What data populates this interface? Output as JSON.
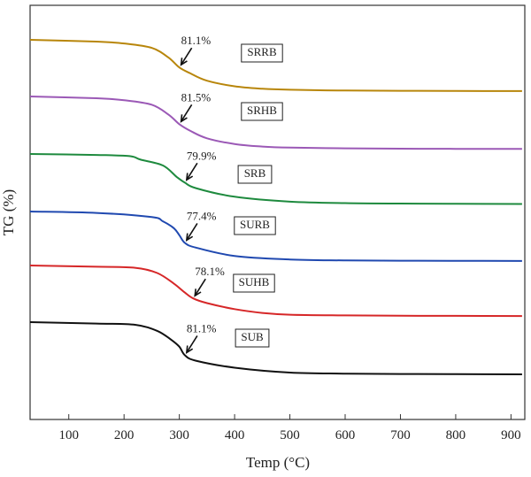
{
  "chart_data": {
    "type": "line",
    "title": "",
    "xlabel": "Temp (°C)",
    "ylabel": "TG (%)",
    "xlim": [
      30,
      925
    ],
    "xticks": [
      100,
      200,
      300,
      400,
      500,
      600,
      700,
      800,
      900
    ],
    "y_ticks_shown": false,
    "grid": false,
    "legend": "none (inline boxed labels)",
    "series": [
      {
        "name": "SRRB",
        "color": "#b8860b",
        "annotation": "81.1%",
        "x": [
          30,
          150,
          200,
          250,
          280,
          300,
          320,
          350,
          400,
          450,
          500,
          600,
          700,
          800,
          920
        ],
        "y": [
          100,
          98.8,
          97.5,
          94.5,
          88,
          81.1,
          77,
          72,
          68.2,
          66.5,
          65.8,
          65.3,
          65.1,
          65.0,
          64.9
        ]
      },
      {
        "name": "SRHB",
        "color": "#9b59b6",
        "annotation": "81.5%",
        "x": [
          30,
          150,
          200,
          250,
          280,
          300,
          320,
          350,
          400,
          450,
          500,
          600,
          700,
          800,
          920
        ],
        "y": [
          100,
          98.8,
          97.5,
          94.5,
          88,
          81.5,
          77,
          72,
          68.2,
          66.5,
          65.8,
          65.3,
          65.1,
          65.0,
          64.9
        ]
      },
      {
        "name": "SRB",
        "color": "#1e8a3e",
        "annotation": "79.9%",
        "x": [
          30,
          150,
          210,
          230,
          270,
          295,
          310,
          330,
          400,
          500,
          600,
          700,
          800,
          920
        ],
        "y": [
          100,
          99.3,
          98.5,
          96,
          92,
          84,
          79.9,
          76,
          70,
          66.5,
          65.5,
          65.2,
          65.0,
          64.9
        ]
      },
      {
        "name": "SURB",
        "color": "#2049b0",
        "annotation": "77.4%",
        "x": [
          30,
          150,
          250,
          270,
          290,
          300,
          310,
          330,
          400,
          500,
          600,
          700,
          800,
          920
        ],
        "y": [
          100,
          99,
          96,
          93,
          88,
          83,
          77.4,
          74,
          68,
          65.5,
          64.8,
          64.6,
          64.5,
          64.4
        ]
      },
      {
        "name": "SUHB",
        "color": "#d62728",
        "annotation": "78.1%",
        "x": [
          30,
          150,
          220,
          260,
          290,
          310,
          325,
          350,
          400,
          450,
          500,
          600,
          700,
          800,
          920
        ],
        "y": [
          100,
          99.2,
          98.5,
          95,
          88,
          82,
          78.1,
          75,
          71,
          68.5,
          67.3,
          66.8,
          66.6,
          66.5,
          66.4
        ]
      },
      {
        "name": "SUB",
        "color": "#111111",
        "annotation": "81.1%",
        "x": [
          30,
          150,
          220,
          260,
          285,
          300,
          310,
          330,
          400,
          500,
          600,
          700,
          800,
          920
        ],
        "y": [
          100,
          99.2,
          98.5,
          95,
          90,
          86,
          81.1,
          78,
          74,
          71.2,
          70.6,
          70.4,
          70.3,
          70.2
        ]
      }
    ]
  }
}
